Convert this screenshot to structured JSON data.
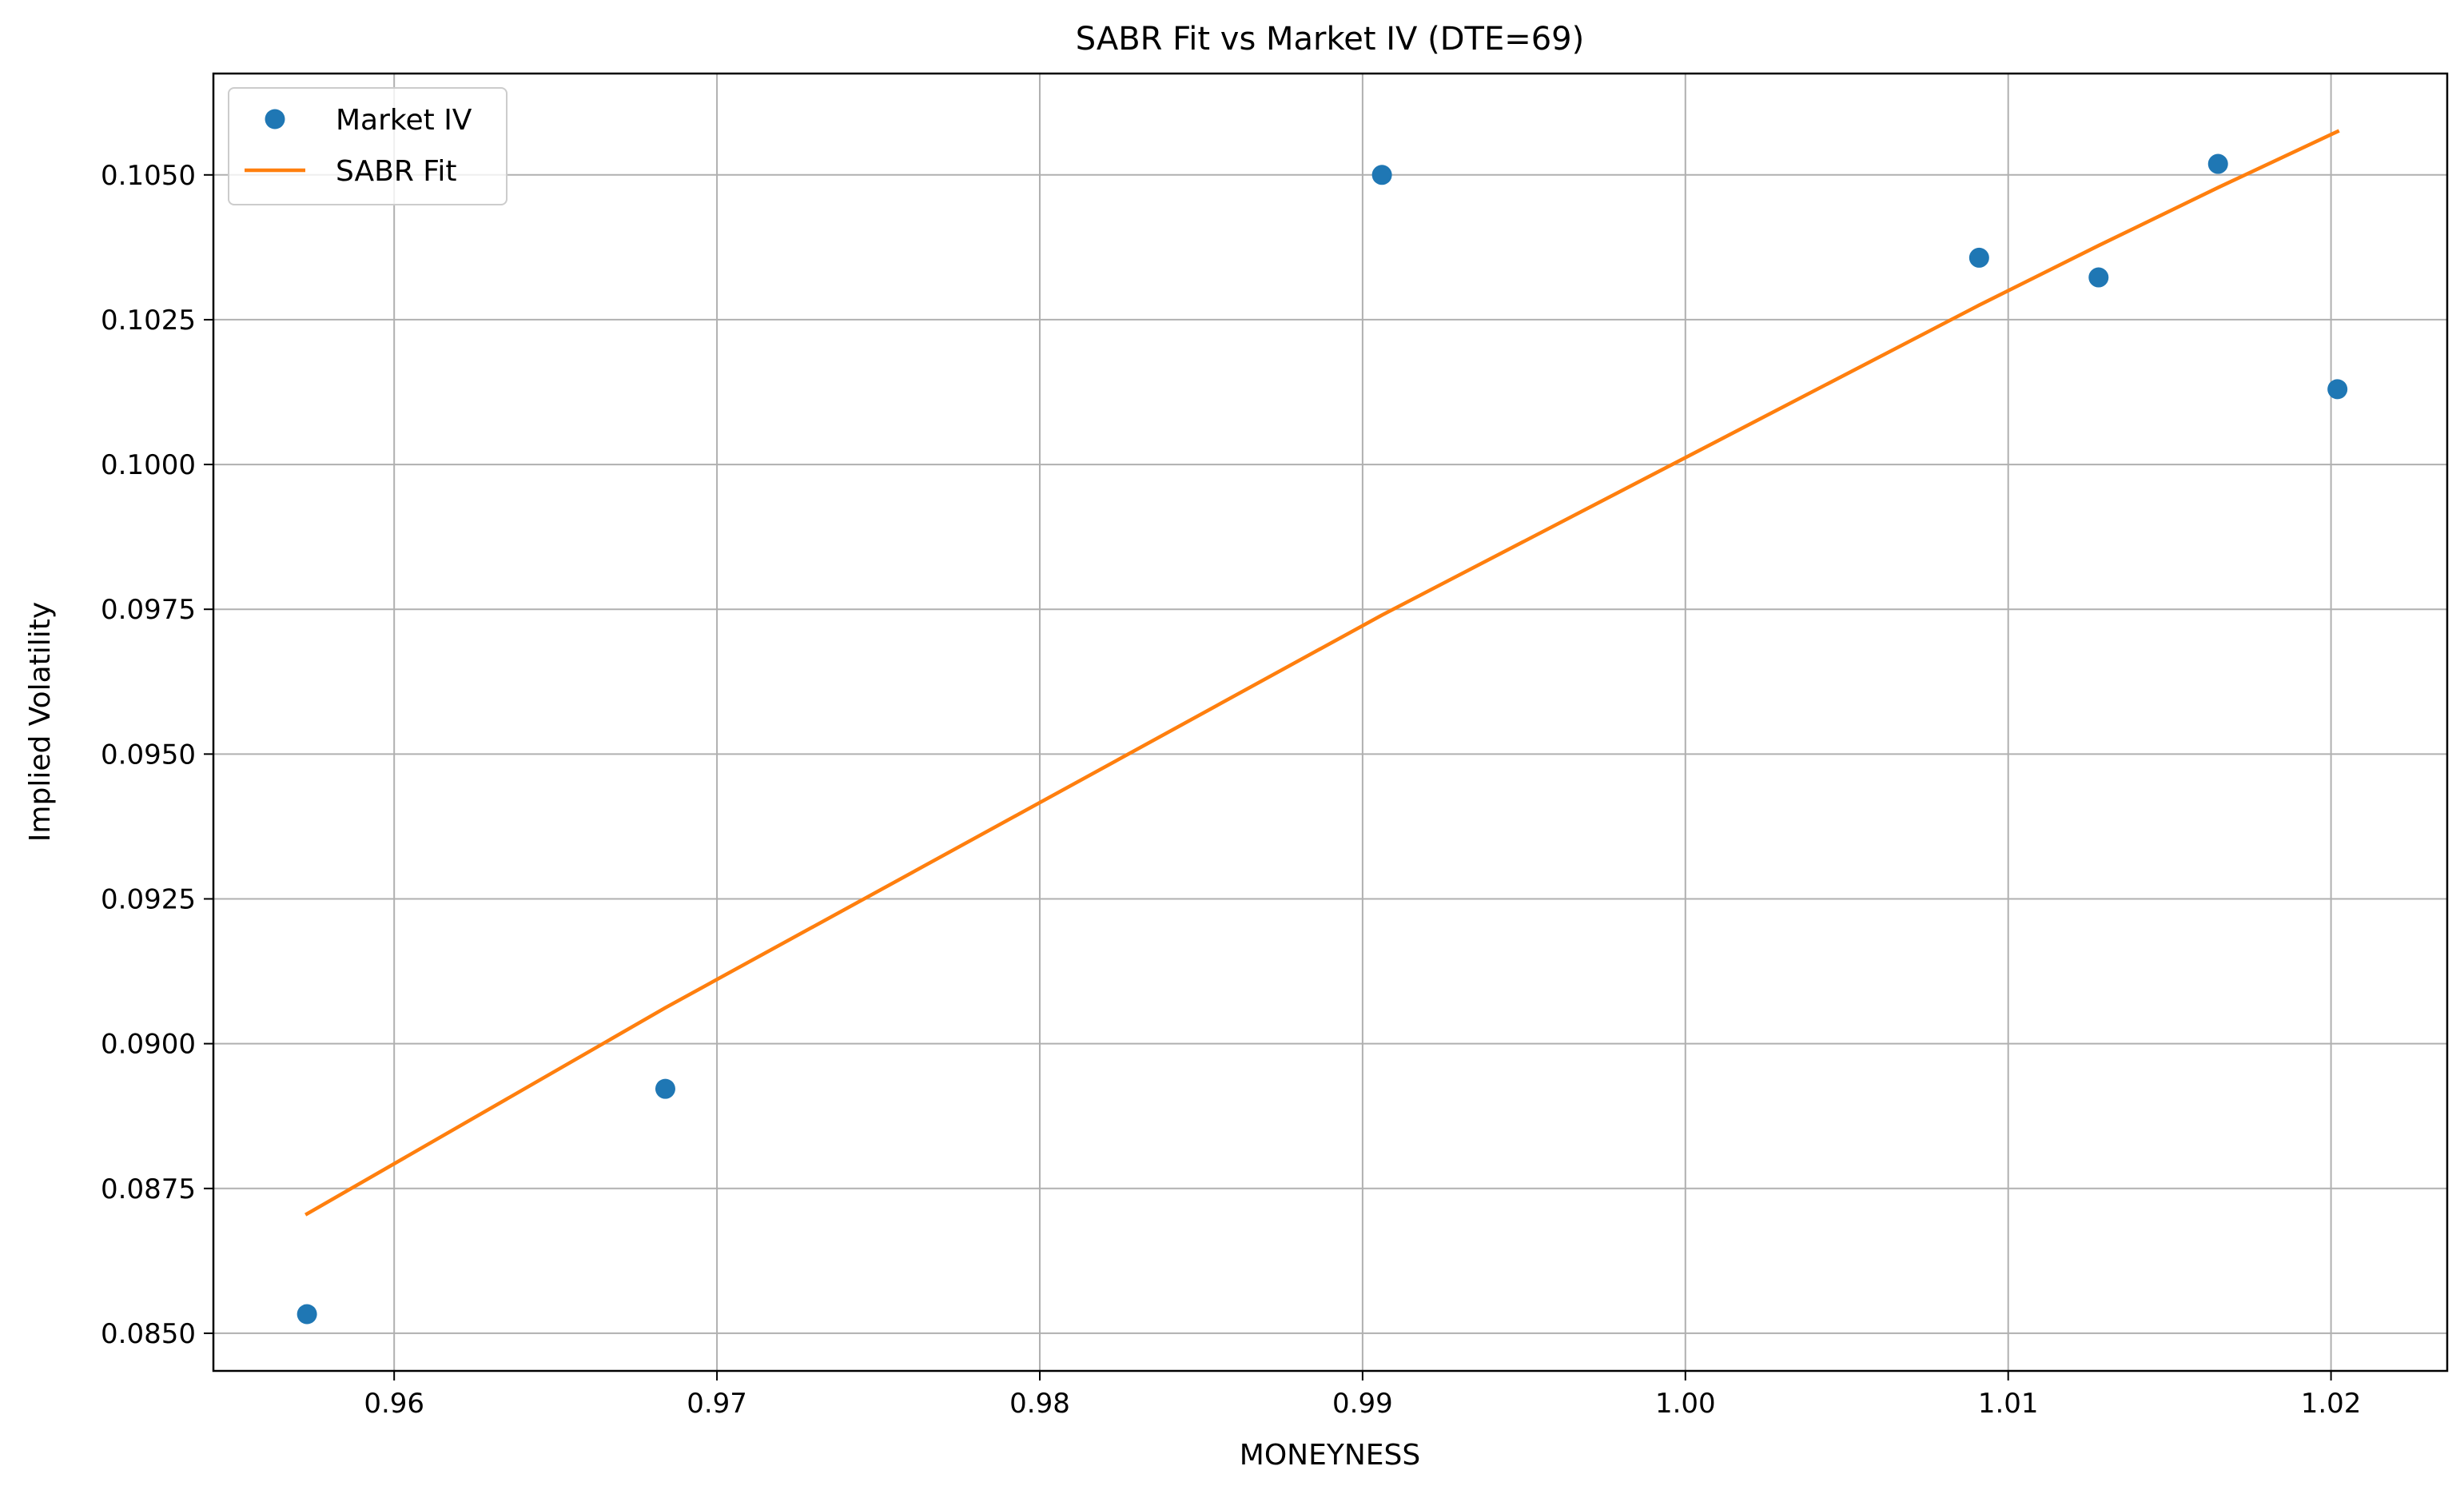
{
  "chart_data": {
    "type": "scatter",
    "title": "SABR Fit vs Market IV (DTE=69)",
    "xlabel": "MONEYNESS",
    "ylabel": "Implied Volatility",
    "xlim": [
      0.9544,
      1.0236
    ],
    "ylim": [
      0.08435,
      0.10675
    ],
    "grid": true,
    "legend_position": "top-left",
    "x_ticks": [
      {
        "value": 0.96,
        "label": "0.96"
      },
      {
        "value": 0.97,
        "label": "0.97"
      },
      {
        "value": 0.98,
        "label": "0.98"
      },
      {
        "value": 0.99,
        "label": "0.99"
      },
      {
        "value": 1.0,
        "label": "1.00"
      },
      {
        "value": 1.01,
        "label": "1.01"
      },
      {
        "value": 1.02,
        "label": "1.02"
      }
    ],
    "y_ticks": [
      {
        "value": 0.085,
        "label": "0.0850"
      },
      {
        "value": 0.0875,
        "label": "0.0875"
      },
      {
        "value": 0.09,
        "label": "0.0900"
      },
      {
        "value": 0.0925,
        "label": "0.0925"
      },
      {
        "value": 0.095,
        "label": "0.0950"
      },
      {
        "value": 0.0975,
        "label": "0.0975"
      },
      {
        "value": 0.1,
        "label": "0.1000"
      },
      {
        "value": 0.1025,
        "label": "0.1025"
      },
      {
        "value": 0.105,
        "label": "0.1050"
      }
    ],
    "series": [
      {
        "name": "Market IV",
        "kind": "markers",
        "color": "#1f77b4",
        "points": [
          {
            "x": 0.9573,
            "y": 0.08533
          },
          {
            "x": 0.9684,
            "y": 0.08922
          },
          {
            "x": 0.9906,
            "y": 0.105
          },
          {
            "x": 1.0091,
            "y": 0.10357
          },
          {
            "x": 1.0128,
            "y": 0.10323
          },
          {
            "x": 1.0165,
            "y": 0.10519
          },
          {
            "x": 1.0202,
            "y": 0.1013
          }
        ]
      },
      {
        "name": "SABR Fit",
        "kind": "line",
        "color": "#ff7f0e",
        "points": [
          {
            "x": 0.9573,
            "y": 0.08706
          },
          {
            "x": 0.9684,
            "y": 0.09062
          },
          {
            "x": 0.9906,
            "y": 0.0974
          },
          {
            "x": 1.0091,
            "y": 0.10275
          },
          {
            "x": 1.0128,
            "y": 0.10378
          },
          {
            "x": 1.0165,
            "y": 0.10478
          },
          {
            "x": 1.0202,
            "y": 0.10575
          }
        ]
      }
    ]
  }
}
